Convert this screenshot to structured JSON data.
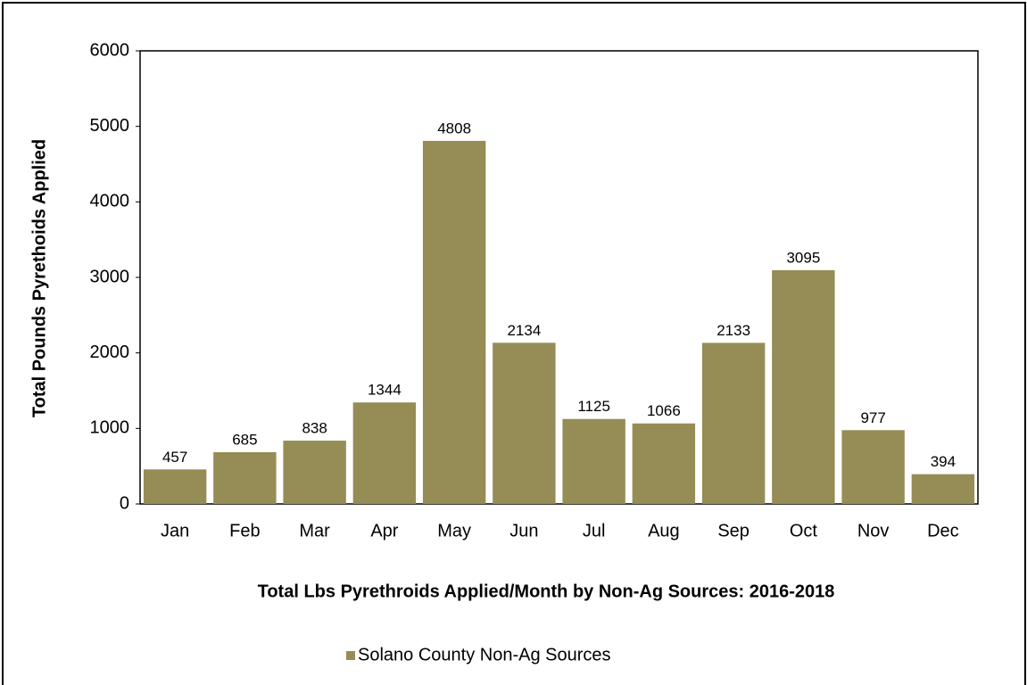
{
  "chart_data": {
    "type": "bar",
    "title": "Total Lbs Pyrethroids Applied/Month  by Non-Ag Sources: 2016-2018",
    "y_label": "Total Pounds Pyrethoids Applied",
    "categories": [
      "Jan",
      "Feb",
      "Mar",
      "Apr",
      "May",
      "Jun",
      "Jul",
      "Aug",
      "Sep",
      "Oct",
      "Nov",
      "Dec"
    ],
    "series": [
      {
        "name": "Solano County Non-Ag Sources",
        "color": "#968c55",
        "values": [
          457,
          685,
          838,
          1344,
          4808,
          2134,
          1125,
          1066,
          2133,
          3095,
          977,
          394
        ]
      }
    ],
    "ylim": [
      0,
      6000
    ],
    "yticks": [
      0,
      1000,
      2000,
      3000,
      4000,
      5000,
      6000
    ],
    "grid": false,
    "legend": "bottom"
  }
}
